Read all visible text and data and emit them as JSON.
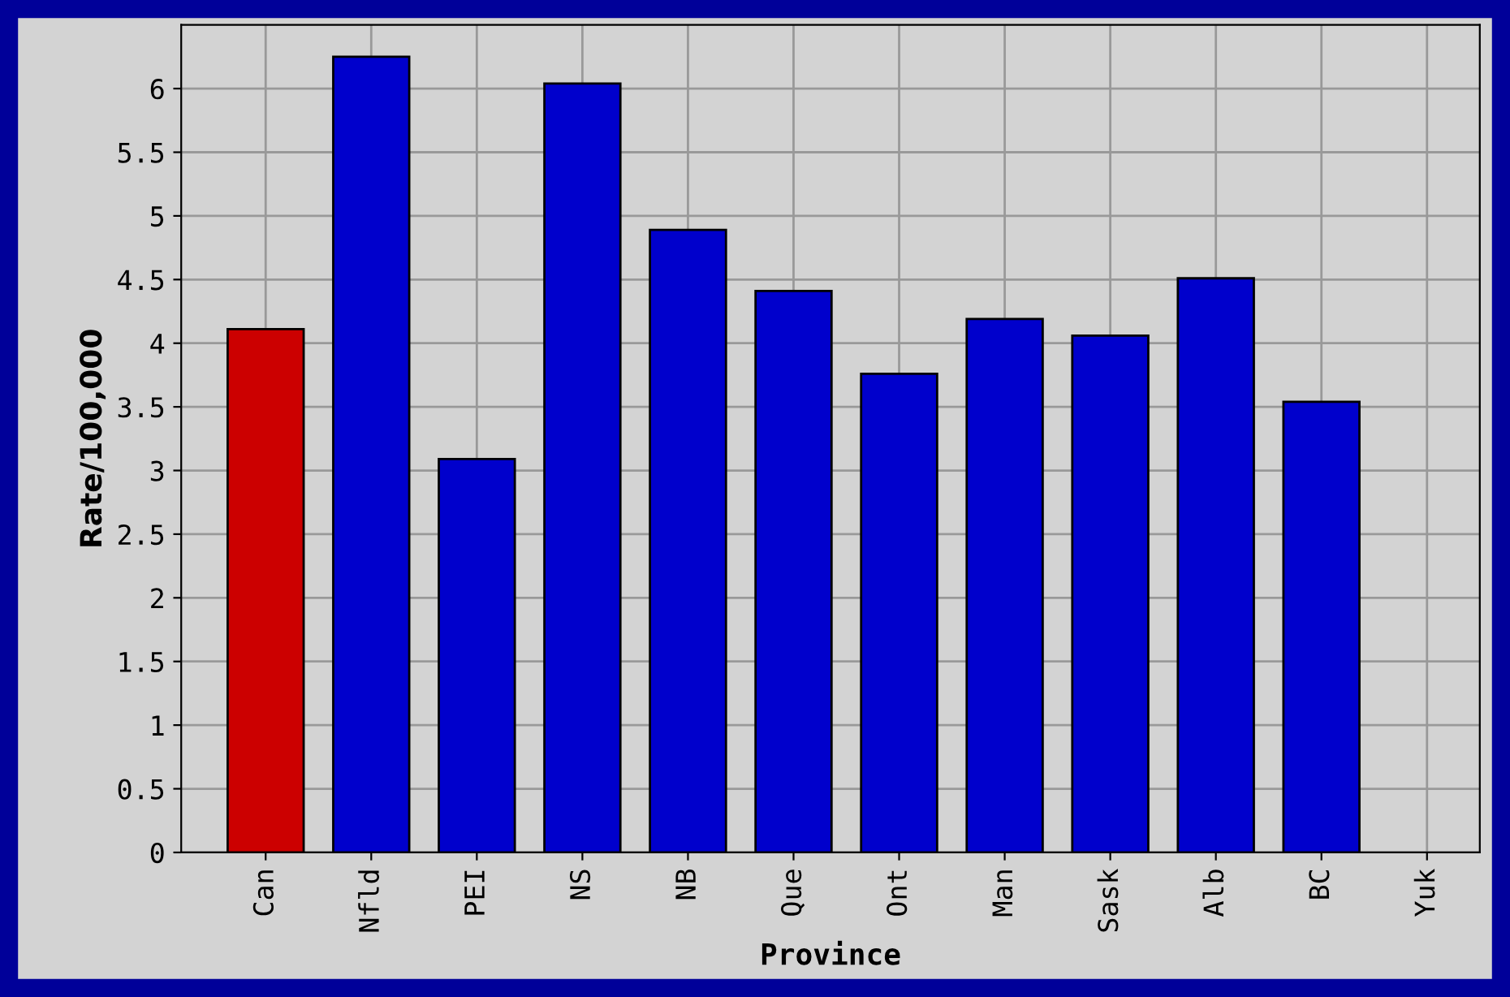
{
  "chart_data": {
    "type": "bar",
    "xlabel": "Province",
    "ylabel": "Rate/100,000",
    "categories": [
      "Can",
      "Nfld",
      "PEI",
      "NS",
      "NB",
      "Que",
      "Ont",
      "Man",
      "Sask",
      "Alb",
      "BC",
      "Yuk"
    ],
    "values": [
      4.11,
      6.25,
      3.09,
      6.04,
      4.89,
      4.41,
      3.76,
      4.19,
      4.06,
      4.51,
      3.54,
      null
    ],
    "colors": [
      "#cc0000",
      "#0000cc",
      "#0000cc",
      "#0000cc",
      "#0000cc",
      "#0000cc",
      "#0000cc",
      "#0000cc",
      "#0000cc",
      "#0000cc",
      "#0000cc",
      "#0000cc"
    ],
    "ylim": [
      0,
      6.5
    ],
    "yticks": [
      0,
      0.5,
      1,
      1.5,
      2,
      2.5,
      3,
      3.5,
      4,
      4.5,
      5,
      5.5,
      6
    ],
    "grid": true
  }
}
